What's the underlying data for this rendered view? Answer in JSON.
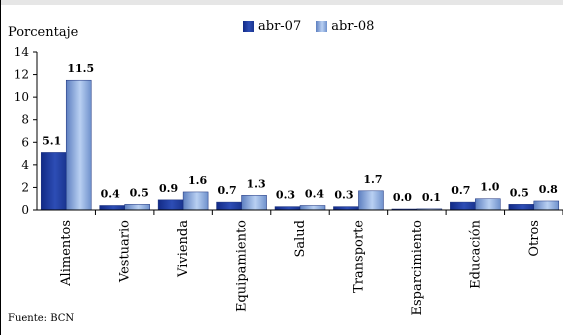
{
  "ylabel": "Porcentaje",
  "source": "Fuente: BCN",
  "colors": {
    "series0": "#1f3a9e",
    "series1": "#8fb0e6"
  },
  "chart_data": {
    "type": "bar",
    "categories": [
      "Alimentos",
      "Vestuario",
      "Vivienda",
      "Equipamiento",
      "Salud",
      "Transporte",
      "Esparcimiento",
      "Educación",
      "Otros"
    ],
    "series": [
      {
        "name": "abr-07",
        "values": [
          5.1,
          0.4,
          0.9,
          0.7,
          0.3,
          0.3,
          0.0,
          0.7,
          0.5
        ]
      },
      {
        "name": "abr-08",
        "values": [
          11.5,
          0.5,
          1.6,
          1.3,
          0.4,
          1.7,
          0.1,
          1.0,
          0.8
        ]
      }
    ],
    "value_labels": [
      [
        "5.1",
        "0.4",
        "0.9",
        "0.7",
        "0.3",
        "0.3",
        "0.0",
        "0.7",
        "0.5"
      ],
      [
        "11.5",
        "0.5",
        "1.6",
        "1.3",
        "0.4",
        "1.7",
        "0.1",
        "1.0",
        "0.8"
      ]
    ],
    "yticks": [
      "0",
      "2",
      "4",
      "6",
      "8",
      "10",
      "12",
      "14"
    ],
    "ylim": [
      0,
      14
    ],
    "ylabel": "Porcentaje",
    "xlabel": "",
    "legend_position": "top"
  }
}
